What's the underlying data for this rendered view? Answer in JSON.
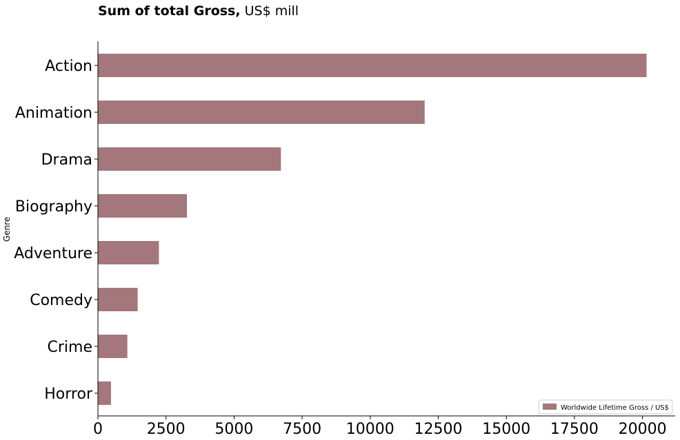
{
  "chart_data": {
    "type": "bar",
    "orientation": "horizontal",
    "title_bold": "Sum of total Gross,",
    "title_rest": " US$ mill",
    "ylabel": "Genre",
    "xlabel": "",
    "categories": [
      "Action",
      "Animation",
      "Drama",
      "Biography",
      "Adventure",
      "Comedy",
      "Crime",
      "Horror"
    ],
    "series": [
      {
        "name": "Worldwide Lifetime Gross / US$",
        "color": "#a3777b",
        "values": [
          20150,
          12000,
          6720,
          3270,
          2240,
          1460,
          1080,
          480
        ]
      }
    ],
    "xlim": [
      0,
      21200
    ],
    "xticks": [
      0,
      2500,
      5000,
      7500,
      10000,
      12500,
      15000,
      17500,
      20000
    ],
    "grid": false,
    "legend_position": "bottom-right"
  }
}
